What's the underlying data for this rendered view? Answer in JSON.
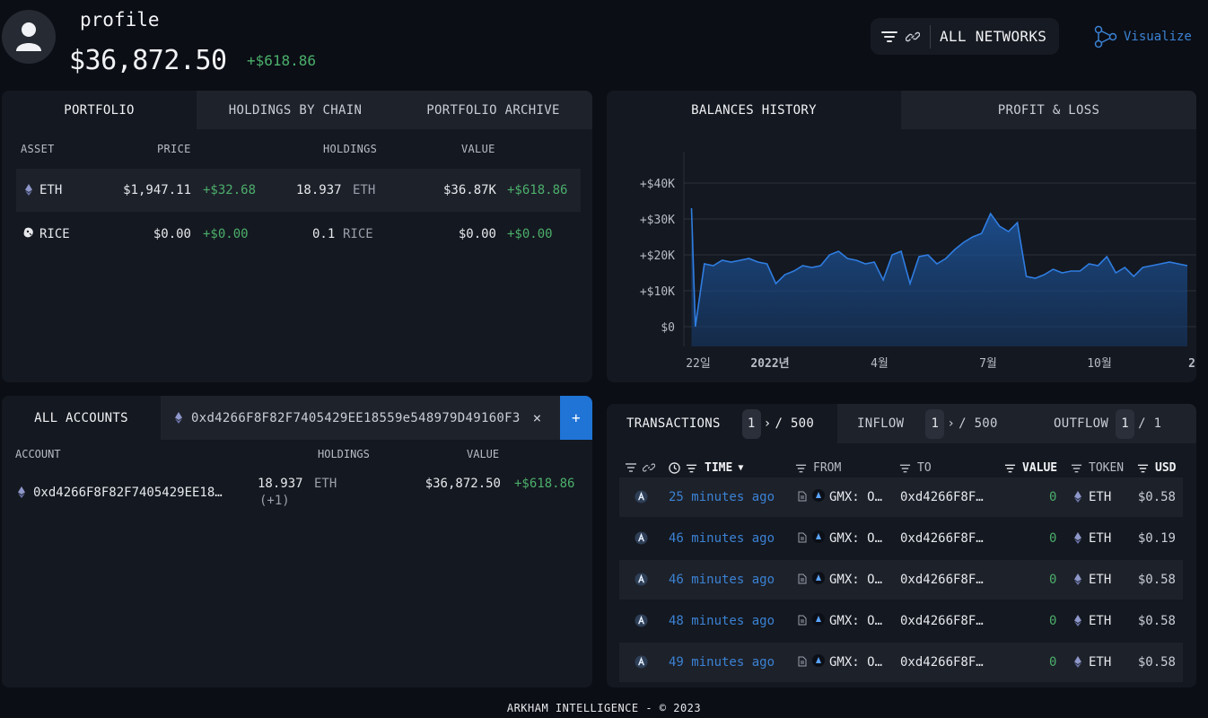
{
  "header": {
    "profile_name": "profile",
    "total_balance": "$36,872.50",
    "total_change": "+$618.86",
    "network_label": "ALL NETWORKS",
    "visualize_label": "Visualize"
  },
  "portfolio": {
    "tabs": [
      "PORTFOLIO",
      "HOLDINGS BY CHAIN",
      "PORTFOLIO ARCHIVE"
    ],
    "columns": [
      "ASSET",
      "PRICE",
      "HOLDINGS",
      "VALUE"
    ],
    "rows": [
      {
        "icon": "eth-icon",
        "asset": "ETH",
        "price": "$1,947.11",
        "price_change": "+$32.68",
        "holdings": "18.937",
        "holdings_unit": "ETH",
        "value": "$36.87K",
        "value_change": "+$618.86"
      },
      {
        "icon": "rice-icon",
        "asset": "RICE",
        "price": "$0.00",
        "price_change": "+$0.00",
        "holdings": "0.1",
        "holdings_unit": "RICE",
        "value": "$0.00",
        "value_change": "+$0.00"
      }
    ]
  },
  "accounts": {
    "tab_all": "ALL ACCOUNTS",
    "tab_address": "0xd4266F8F82F7405429EE18559e548979D49160F3",
    "add_label": "+",
    "columns": [
      "ACCOUNT",
      "HOLDINGS",
      "VALUE"
    ],
    "rows": [
      {
        "account": "0xd4266F8F82F7405429EE18…",
        "holdings": "18.937",
        "holdings_unit": "ETH",
        "holdings_extra": "(+1)",
        "value": "$36,872.50",
        "change": "+$618.86"
      }
    ]
  },
  "balances": {
    "tabs": [
      "BALANCES HISTORY",
      "PROFIT & LOSS"
    ]
  },
  "chart_data": {
    "type": "area",
    "title": "",
    "xlabel": "",
    "ylabel": "",
    "ylim": [
      0,
      40000
    ],
    "y_ticks": [
      "$0",
      "+$10K",
      "+$20K",
      "+$30K",
      "+$40K"
    ],
    "x_ticks": [
      "22일",
      "2022년",
      "4월",
      "7월",
      "10월",
      "2"
    ],
    "x": [
      "2021-12-19",
      "2021-12-22",
      "2021-12-29",
      "2022-01-05",
      "2022-01-12",
      "2022-01-19",
      "2022-01-26",
      "2022-02-02",
      "2022-02-09",
      "2022-02-16",
      "2022-02-23",
      "2022-03-02",
      "2022-03-09",
      "2022-03-16",
      "2022-03-23",
      "2022-03-30",
      "2022-04-06",
      "2022-04-13",
      "2022-04-20",
      "2022-04-27",
      "2022-05-04",
      "2022-05-11",
      "2022-05-18",
      "2022-05-25",
      "2022-06-01",
      "2022-06-08",
      "2022-06-15",
      "2022-06-22",
      "2022-06-29",
      "2022-07-06",
      "2022-07-13",
      "2022-07-20",
      "2022-07-27",
      "2022-08-03",
      "2022-08-10",
      "2022-08-17",
      "2022-08-24",
      "2022-08-31",
      "2022-09-07",
      "2022-09-14",
      "2022-09-21",
      "2022-09-28",
      "2022-10-05",
      "2022-10-12",
      "2022-10-19",
      "2022-10-26",
      "2022-11-02",
      "2022-11-09",
      "2022-11-16",
      "2022-11-23",
      "2022-11-30",
      "2022-12-07",
      "2022-12-14",
      "2022-12-21",
      "2022-12-28",
      "2023-01-04",
      "2023-01-11"
    ],
    "series": [
      {
        "values": [
          33000,
          0,
          17500,
          17000,
          18500,
          18000,
          18500,
          19000,
          18000,
          17500,
          12000,
          14500,
          15500,
          17000,
          16500,
          17000,
          20000,
          21000,
          19000,
          18500,
          17500,
          18000,
          13000,
          20000,
          21000,
          12000,
          19500,
          20000,
          17500,
          19000,
          21500,
          23500,
          25000,
          26000,
          31500,
          28000,
          26500,
          29000,
          14000,
          13500,
          14500,
          16000,
          15000,
          15500,
          15500,
          17500,
          17000,
          19500,
          15000,
          16500,
          14000,
          16500,
          17000,
          17500,
          18000,
          17500,
          17000
        ]
      }
    ]
  },
  "transactions": {
    "tabs": [
      {
        "label": "TRANSACTIONS",
        "page": "1",
        "total": "/ 500"
      },
      {
        "label": "INFLOW",
        "page": "1",
        "total": "/ 500"
      },
      {
        "label": "OUTFLOW",
        "page": "1",
        "total": "/ 1"
      }
    ],
    "columns": {
      "time": "TIME",
      "from": "FROM",
      "to": "TO",
      "value": "VALUE",
      "token": "TOKEN",
      "usd": "USD"
    },
    "rows": [
      {
        "time": "25 minutes ago",
        "from": "GMX: O…",
        "to": "0xd4266F8F…",
        "value": "0",
        "token": "ETH",
        "usd": "$0.58"
      },
      {
        "time": "46 minutes ago",
        "from": "GMX: O…",
        "to": "0xd4266F8F…",
        "value": "0",
        "token": "ETH",
        "usd": "$0.19"
      },
      {
        "time": "46 minutes ago",
        "from": "GMX: O…",
        "to": "0xd4266F8F…",
        "value": "0",
        "token": "ETH",
        "usd": "$0.58"
      },
      {
        "time": "48 minutes ago",
        "from": "GMX: O…",
        "to": "0xd4266F8F…",
        "value": "0",
        "token": "ETH",
        "usd": "$0.58"
      },
      {
        "time": "49 minutes ago",
        "from": "GMX: O…",
        "to": "0xd4266F8F…",
        "value": "0",
        "token": "ETH",
        "usd": "$0.58"
      }
    ]
  },
  "footer": "ARKHAM INTELLIGENCE - © 2023",
  "colors": {
    "background": "#0b0e15",
    "panel": "#141820",
    "accent": "#3b82d4",
    "positive": "#4caf6b",
    "chart_line": "#2f7de1"
  }
}
